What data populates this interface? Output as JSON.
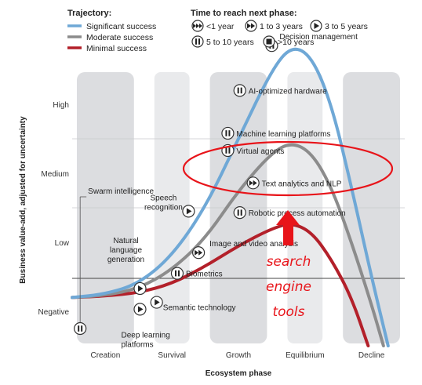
{
  "chart_data": {
    "type": "line",
    "xlabel": "Ecosystem phase",
    "ylabel": "Business value-add, adjusted for uncertainty",
    "x_categories": [
      "Creation",
      "Survival",
      "Growth",
      "Equilibrium",
      "Decline"
    ],
    "y_categories": [
      "Negative",
      "Low",
      "Medium",
      "High"
    ],
    "x_range": [
      0,
      5
    ],
    "y_range": [
      0,
      4
    ],
    "grid": false,
    "background": "alternating shaded columns per ecosystem phase",
    "legend": {
      "placement": "top-left",
      "trajectory_title": "Trajectory:",
      "time_title": "Time to reach next phase:",
      "trajectory_items": [
        {
          "label": "Significant success",
          "color": "#6fa8d6"
        },
        {
          "label": "Moderate success",
          "color": "#8c8c8c"
        },
        {
          "label": "Minimal success",
          "color": "#b3202a"
        }
      ],
      "time_items": [
        {
          "label": "<1 year",
          "icon": "triple-play-icon"
        },
        {
          "label": "1 to 3 years",
          "icon": "double-play-icon"
        },
        {
          "label": "3 to 5 years",
          "icon": "play-icon"
        },
        {
          "label": "5 to 10 years",
          "icon": "pause-icon"
        },
        {
          "label": ">10 years",
          "icon": "stop-icon"
        }
      ]
    },
    "series": [
      {
        "name": "Significant success",
        "color": "#6fa8d6",
        "points": [
          [
            0.0,
            0.2
          ],
          [
            0.5,
            0.25
          ],
          [
            1.0,
            0.4
          ],
          [
            1.5,
            0.8
          ],
          [
            2.0,
            1.5
          ],
          [
            2.5,
            2.5
          ],
          [
            3.0,
            3.5
          ],
          [
            3.3,
            3.85
          ],
          [
            3.6,
            3.7
          ],
          [
            3.9,
            3.0
          ],
          [
            4.2,
            1.8
          ],
          [
            4.5,
            0.5
          ],
          [
            4.75,
            -0.5
          ]
        ]
      },
      {
        "name": "Moderate success",
        "color": "#8c8c8c",
        "points": [
          [
            0.0,
            0.2
          ],
          [
            0.5,
            0.23
          ],
          [
            1.0,
            0.33
          ],
          [
            1.5,
            0.6
          ],
          [
            2.0,
            1.05
          ],
          [
            2.5,
            1.75
          ],
          [
            3.0,
            2.3
          ],
          [
            3.3,
            2.45
          ],
          [
            3.6,
            2.3
          ],
          [
            3.9,
            1.8
          ],
          [
            4.2,
            1.0
          ],
          [
            4.5,
            0.1
          ],
          [
            4.68,
            -0.5
          ]
        ]
      },
      {
        "name": "Minimal success",
        "color": "#b3202a",
        "points": [
          [
            0.0,
            0.2
          ],
          [
            0.5,
            0.22
          ],
          [
            1.0,
            0.27
          ],
          [
            1.5,
            0.4
          ],
          [
            2.0,
            0.65
          ],
          [
            2.5,
            0.95
          ],
          [
            3.0,
            1.2
          ],
          [
            3.3,
            1.28
          ],
          [
            3.6,
            1.15
          ],
          [
            3.9,
            0.75
          ],
          [
            4.2,
            0.2
          ],
          [
            4.45,
            -0.5
          ]
        ]
      }
    ],
    "annotations": [
      {
        "label": "Decision management",
        "icon": "pause-icon",
        "x": 3.0,
        "y": 3.85
      },
      {
        "label": "AI-optimized hardware",
        "icon": "pause-icon",
        "x": 2.52,
        "y": 3.2
      },
      {
        "label": "Machine learning platforms",
        "icon": "pause-icon",
        "x": 2.34,
        "y": 2.58
      },
      {
        "label": "Virtual agents",
        "icon": "pause-icon",
        "x": 2.34,
        "y": 2.33
      },
      {
        "label": "Text analytics and NLP",
        "icon": "double-play-icon",
        "x": 2.72,
        "y": 1.86
      },
      {
        "label": "Robotic process automation",
        "icon": "pause-icon",
        "x": 2.52,
        "y": 1.43
      },
      {
        "label": "Image and video analysis",
        "icon": "double-play-icon",
        "x": 1.9,
        "y": 0.85
      },
      {
        "label": "Speech recognition",
        "icon": "play-icon",
        "x": 1.75,
        "y": 1.45
      },
      {
        "label": "Biometrics",
        "icon": "pause-icon",
        "x": 1.58,
        "y": 0.55
      },
      {
        "label": "Natural language generation",
        "icon": "play-icon",
        "x": 1.02,
        "y": 0.33
      },
      {
        "label": "Deep learning platforms",
        "icon": "play-icon",
        "x": 1.02,
        "y": 0.03
      },
      {
        "label": "Semantic technology",
        "icon": "play-icon",
        "x": 1.27,
        "y": 0.13
      },
      {
        "label": "Swarm intelligence",
        "icon": "pause-icon",
        "x": 0.12,
        "y": -0.25
      }
    ],
    "overlay_note": "search engine tools",
    "highlight_color": "#e8141a"
  }
}
